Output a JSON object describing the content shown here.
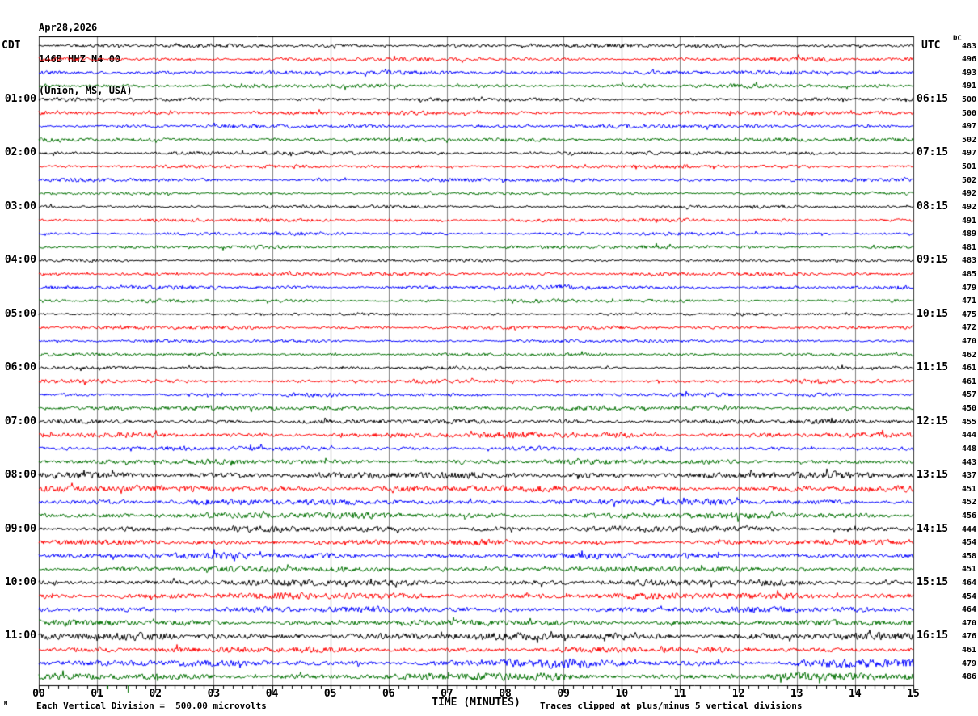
{
  "title": {
    "line1": "Apr28,2026",
    "line2": "146B HHZ N4 00",
    "line3": "(Union, MS, USA)"
  },
  "header": {
    "left_tz": "CDT",
    "right_tz": "UTC",
    "dc_label": "DC"
  },
  "axis": {
    "label": "TIME (MINUTES)",
    "tick_labels": [
      "00",
      "01",
      "02",
      "03",
      "04",
      "05",
      "06",
      "07",
      "08",
      "09",
      "10",
      "11",
      "12",
      "13",
      "14",
      "15"
    ],
    "minor_ticks_per_minute": 5,
    "green_markers": [
      {
        "min": 1.18,
        "size": "small"
      },
      {
        "min": 1.53,
        "size": "large"
      }
    ]
  },
  "footer": {
    "left_note": "Each Vertical Division =  500.00 microvolts",
    "right_note": "Traces clipped at plus/minus 5 vertical divisions",
    "corner_mark": "M"
  },
  "colors": {
    "black": "#000000",
    "red": "#ff0000",
    "blue": "#0000ff",
    "green": "#007000",
    "grid": "#808080",
    "frame": "#303030"
  },
  "chart_data": {
    "type": "line",
    "subtype": "seismogram-helicorder",
    "title": "Apr28,2026 146B HHZ N4 00 (Union, MS, USA)",
    "xlabel": "TIME (MINUTES)",
    "x_range_minutes": [
      0,
      15
    ],
    "minutes_per_row": 15,
    "left_timezone": "CDT",
    "right_timezone": "UTC",
    "vertical_division_microvolts": 500.0,
    "clip_divisions": 5,
    "color_cycle": [
      "black",
      "red",
      "blue",
      "green"
    ],
    "rows": [
      {
        "cdt": "",
        "utc": "",
        "dc": 483,
        "color": "black",
        "amp": 2.2,
        "bursts": []
      },
      {
        "cdt": "",
        "utc": "",
        "dc": 496,
        "color": "red",
        "amp": 2.3,
        "bursts": []
      },
      {
        "cdt": "",
        "utc": "",
        "dc": 493,
        "color": "blue",
        "amp": 2.4,
        "bursts": []
      },
      {
        "cdt": "",
        "utc": "",
        "dc": 491,
        "color": "green",
        "amp": 2.4,
        "bursts": []
      },
      {
        "cdt": "01:00",
        "utc": "06:15",
        "dc": 500,
        "color": "black",
        "amp": 2.2,
        "bursts": []
      },
      {
        "cdt": "",
        "utc": "",
        "dc": 500,
        "color": "red",
        "amp": 2.4,
        "bursts": []
      },
      {
        "cdt": "",
        "utc": "",
        "dc": 497,
        "color": "blue",
        "amp": 2.3,
        "bursts": []
      },
      {
        "cdt": "",
        "utc": "",
        "dc": 502,
        "color": "green",
        "amp": 2.4,
        "bursts": []
      },
      {
        "cdt": "02:00",
        "utc": "07:15",
        "dc": 497,
        "color": "black",
        "amp": 2.3,
        "bursts": []
      },
      {
        "cdt": "",
        "utc": "",
        "dc": 501,
        "color": "red",
        "amp": 2.2,
        "bursts": []
      },
      {
        "cdt": "",
        "utc": "",
        "dc": 502,
        "color": "blue",
        "amp": 2.2,
        "bursts": []
      },
      {
        "cdt": "",
        "utc": "",
        "dc": 492,
        "color": "green",
        "amp": 1.7,
        "bursts": []
      },
      {
        "cdt": "03:00",
        "utc": "08:15",
        "dc": 492,
        "color": "black",
        "amp": 1.9,
        "bursts": []
      },
      {
        "cdt": "",
        "utc": "",
        "dc": 491,
        "color": "red",
        "amp": 2.1,
        "bursts": []
      },
      {
        "cdt": "",
        "utc": "",
        "dc": 489,
        "color": "blue",
        "amp": 2.1,
        "bursts": []
      },
      {
        "cdt": "",
        "utc": "",
        "dc": 481,
        "color": "green",
        "amp": 2.1,
        "bursts": []
      },
      {
        "cdt": "04:00",
        "utc": "09:15",
        "dc": 483,
        "color": "black",
        "amp": 1.7,
        "bursts": []
      },
      {
        "cdt": "",
        "utc": "",
        "dc": 485,
        "color": "red",
        "amp": 2.2,
        "bursts": []
      },
      {
        "cdt": "",
        "utc": "",
        "dc": 479,
        "color": "blue",
        "amp": 2.2,
        "bursts": [
          {
            "start": 9.0,
            "end": 9.6,
            "amp": 3.5
          }
        ]
      },
      {
        "cdt": "",
        "utc": "",
        "dc": 471,
        "color": "green",
        "amp": 2.1,
        "bursts": []
      },
      {
        "cdt": "05:00",
        "utc": "10:15",
        "dc": 475,
        "color": "black",
        "amp": 1.7,
        "bursts": []
      },
      {
        "cdt": "",
        "utc": "",
        "dc": 472,
        "color": "red",
        "amp": 2.1,
        "bursts": []
      },
      {
        "cdt": "",
        "utc": "",
        "dc": 470,
        "color": "blue",
        "amp": 1.9,
        "bursts": []
      },
      {
        "cdt": "",
        "utc": "",
        "dc": 462,
        "color": "green",
        "amp": 1.9,
        "bursts": []
      },
      {
        "cdt": "06:00",
        "utc": "11:15",
        "dc": 461,
        "color": "black",
        "amp": 1.9,
        "bursts": []
      },
      {
        "cdt": "",
        "utc": "",
        "dc": 461,
        "color": "red",
        "amp": 2.3,
        "bursts": []
      },
      {
        "cdt": "",
        "utc": "",
        "dc": 457,
        "color": "blue",
        "amp": 2.3,
        "bursts": []
      },
      {
        "cdt": "",
        "utc": "",
        "dc": 450,
        "color": "green",
        "amp": 2.7,
        "bursts": []
      },
      {
        "cdt": "07:00",
        "utc": "12:15",
        "dc": 455,
        "color": "black",
        "amp": 2.7,
        "bursts": []
      },
      {
        "cdt": "",
        "utc": "",
        "dc": 444,
        "color": "red",
        "amp": 3.0,
        "bursts": [
          {
            "start": 8.0,
            "end": 10.2,
            "amp": 4.2
          }
        ]
      },
      {
        "cdt": "",
        "utc": "",
        "dc": 448,
        "color": "blue",
        "amp": 2.7,
        "bursts": []
      },
      {
        "cdt": "",
        "utc": "",
        "dc": 443,
        "color": "green",
        "amp": 3.0,
        "bursts": []
      },
      {
        "cdt": "08:00",
        "utc": "13:15",
        "dc": 437,
        "color": "black",
        "amp": 4.0,
        "bursts": []
      },
      {
        "cdt": "",
        "utc": "",
        "dc": 451,
        "color": "red",
        "amp": 3.6,
        "bursts": []
      },
      {
        "cdt": "",
        "utc": "",
        "dc": 452,
        "color": "blue",
        "amp": 3.4,
        "bursts": [
          {
            "start": 1.0,
            "end": 1.8,
            "amp": 4.5
          }
        ]
      },
      {
        "cdt": "",
        "utc": "",
        "dc": 456,
        "color": "green",
        "amp": 3.6,
        "bursts": [
          {
            "start": 2.4,
            "end": 3.1,
            "amp": 5.0
          }
        ]
      },
      {
        "cdt": "09:00",
        "utc": "14:15",
        "dc": 444,
        "color": "black",
        "amp": 3.5,
        "bursts": []
      },
      {
        "cdt": "",
        "utc": "",
        "dc": 454,
        "color": "red",
        "amp": 3.3,
        "bursts": []
      },
      {
        "cdt": "",
        "utc": "",
        "dc": 458,
        "color": "blue",
        "amp": 3.4,
        "bursts": [
          {
            "start": 3.0,
            "end": 3.5,
            "amp": 4.5
          }
        ]
      },
      {
        "cdt": "",
        "utc": "",
        "dc": 451,
        "color": "green",
        "amp": 3.2,
        "bursts": []
      },
      {
        "cdt": "10:00",
        "utc": "15:15",
        "dc": 464,
        "color": "black",
        "amp": 3.6,
        "bursts": []
      },
      {
        "cdt": "",
        "utc": "",
        "dc": 454,
        "color": "red",
        "amp": 3.9,
        "bursts": []
      },
      {
        "cdt": "",
        "utc": "",
        "dc": 464,
        "color": "blue",
        "amp": 3.5,
        "bursts": []
      },
      {
        "cdt": "",
        "utc": "",
        "dc": 470,
        "color": "green",
        "amp": 3.5,
        "bursts": []
      },
      {
        "cdt": "11:00",
        "utc": "16:15",
        "dc": 476,
        "color": "black",
        "amp": 4.2,
        "bursts": []
      },
      {
        "cdt": "",
        "utc": "",
        "dc": 461,
        "color": "red",
        "amp": 3.5,
        "bursts": []
      },
      {
        "cdt": "",
        "utc": "",
        "dc": 479,
        "color": "blue",
        "amp": 3.6,
        "bursts": [
          {
            "start": 8.0,
            "end": 9.3,
            "amp": 6.0
          },
          {
            "start": 13.0,
            "end": 15.0,
            "amp": 6.5
          }
        ]
      },
      {
        "cdt": "",
        "utc": "",
        "dc": 486,
        "color": "green",
        "amp": 3.8,
        "bursts": [
          {
            "start": 7.4,
            "end": 9.0,
            "amp": 5.0
          },
          {
            "start": 12.8,
            "end": 14.3,
            "amp": 5.2
          }
        ]
      }
    ]
  }
}
